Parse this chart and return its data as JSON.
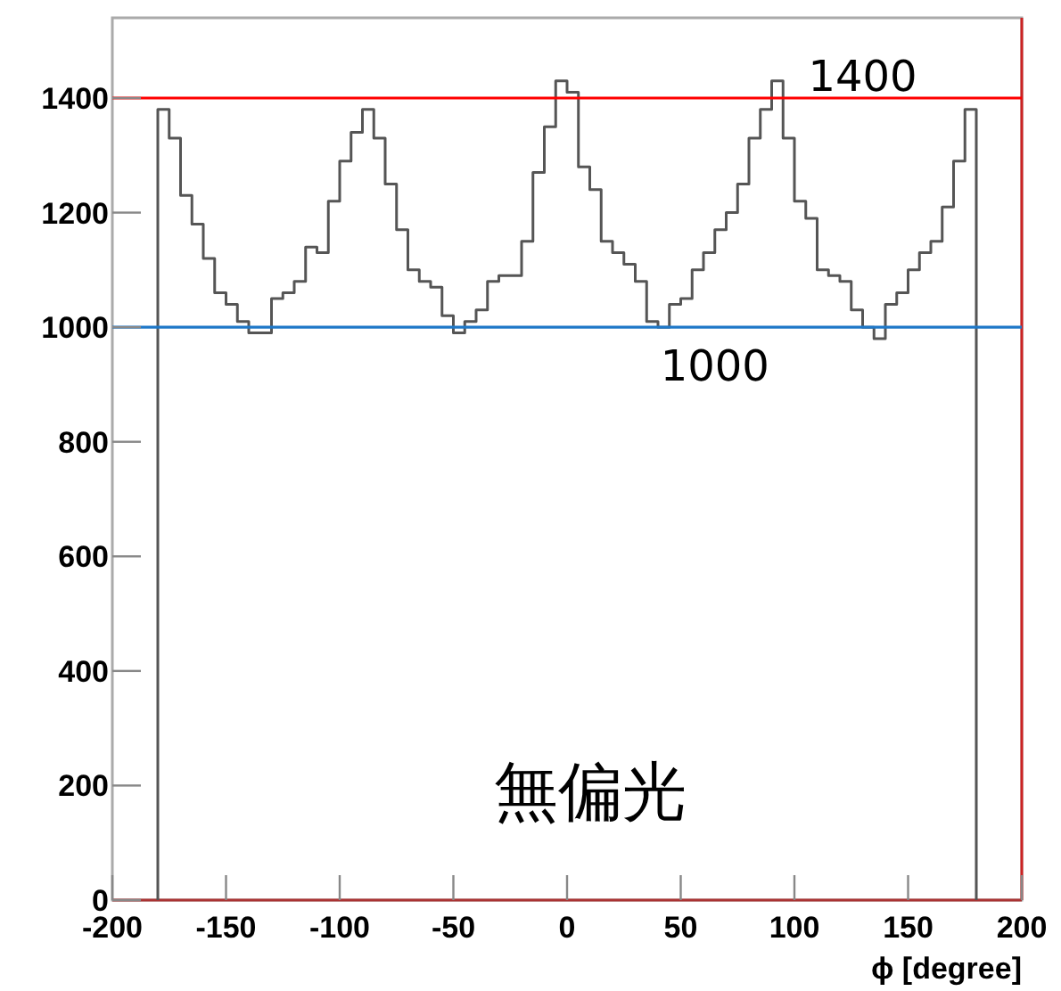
{
  "chart_data": {
    "type": "histogram",
    "xlabel": "ϕ [degree]",
    "color": "#555555",
    "bins": [
      -180,
      -175,
      -170,
      -165,
      -160,
      -155,
      -150,
      -145,
      -140,
      -135,
      -130,
      -125,
      -120,
      -115,
      -110,
      -105,
      -100,
      -95,
      -90,
      -85,
      -80,
      -75,
      -70,
      -65,
      -60,
      -55,
      -50,
      -45,
      -40,
      -35,
      -30,
      -25,
      -20,
      -15,
      -10,
      -5,
      0,
      5,
      10,
      15,
      20,
      25,
      30,
      35,
      40,
      45,
      50,
      55,
      60,
      65,
      70,
      75,
      80,
      85,
      90,
      95,
      100,
      105,
      110,
      115,
      120,
      125,
      130,
      135,
      140,
      145,
      150,
      155,
      160,
      165,
      170,
      175,
      180
    ],
    "values": [
      1380,
      1330,
      1230,
      1180,
      1120,
      1060,
      1040,
      1010,
      990,
      990,
      1050,
      1060,
      1080,
      1140,
      1130,
      1220,
      1290,
      1340,
      1380,
      1330,
      1250,
      1170,
      1100,
      1080,
      1070,
      1020,
      990,
      1010,
      1030,
      1080,
      1090,
      1090,
      1150,
      1270,
      1350,
      1430,
      1410,
      1280,
      1240,
      1150,
      1130,
      1110,
      1080,
      1010,
      1000,
      1040,
      1050,
      1100,
      1130,
      1170,
      1200,
      1250,
      1330,
      1380,
      1430,
      1330,
      1220,
      1190,
      1100,
      1090,
      1080,
      1030,
      1000,
      980,
      1040,
      1060,
      1100,
      1130,
      1150,
      1210,
      1290,
      1380
    ],
    "xlim": [
      -200,
      200
    ],
    "xticks": [
      -200,
      -150,
      -100,
      -50,
      0,
      50,
      100,
      150,
      200
    ],
    "ylim": [
      0,
      1540
    ],
    "yticks": [
      0,
      200,
      400,
      600,
      800,
      1000,
      1200,
      1400
    ],
    "ref_lines": [
      {
        "axis": "y",
        "value": 1400,
        "label": "1400",
        "color": "#ff0000"
      },
      {
        "axis": "y",
        "value": 1000,
        "label": "1000",
        "color": "#1f78c8"
      }
    ],
    "annotations": [
      "無偏光"
    ]
  }
}
